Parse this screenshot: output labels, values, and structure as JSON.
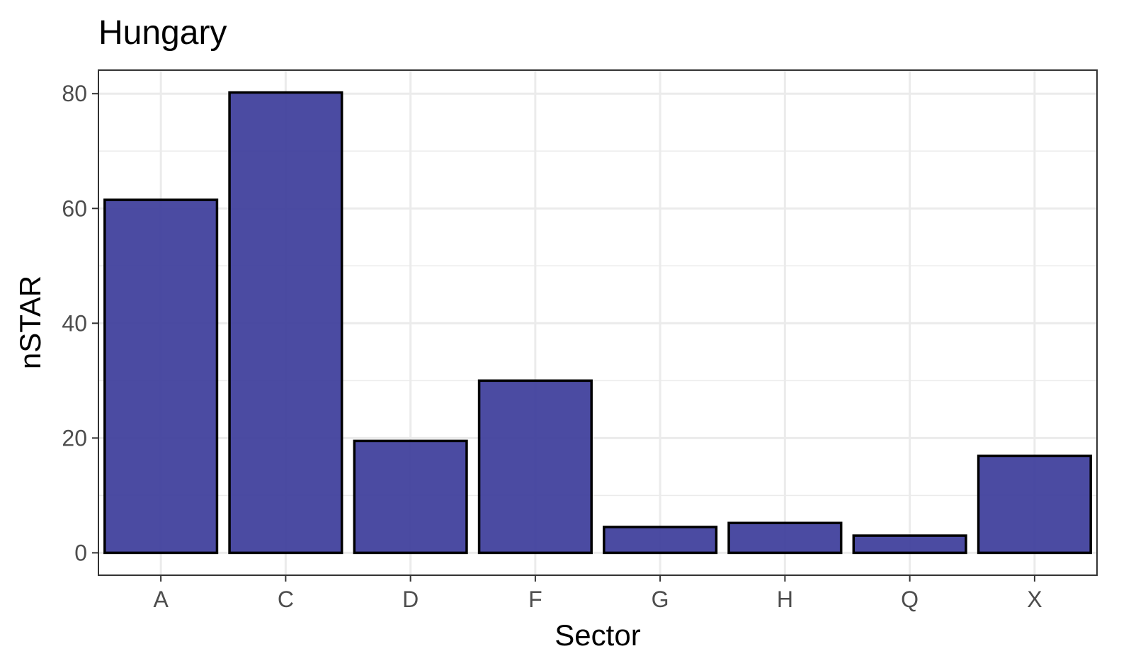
{
  "chart_data": {
    "type": "bar",
    "title": "Hungary",
    "xlabel": "Sector",
    "ylabel": "nSTAR",
    "categories": [
      "A",
      "C",
      "D",
      "F",
      "G",
      "H",
      "Q",
      "X"
    ],
    "values": [
      61.5,
      80.2,
      19.5,
      30.0,
      4.5,
      5.2,
      3.0,
      16.9
    ],
    "ylim": [
      -3.9,
      84.1
    ],
    "yticks": [
      0,
      20,
      40,
      60,
      80
    ],
    "grid": true,
    "legend": "none",
    "colors": {
      "bar_fill": "#3c3c9a",
      "bar_outline": "#000000"
    }
  }
}
